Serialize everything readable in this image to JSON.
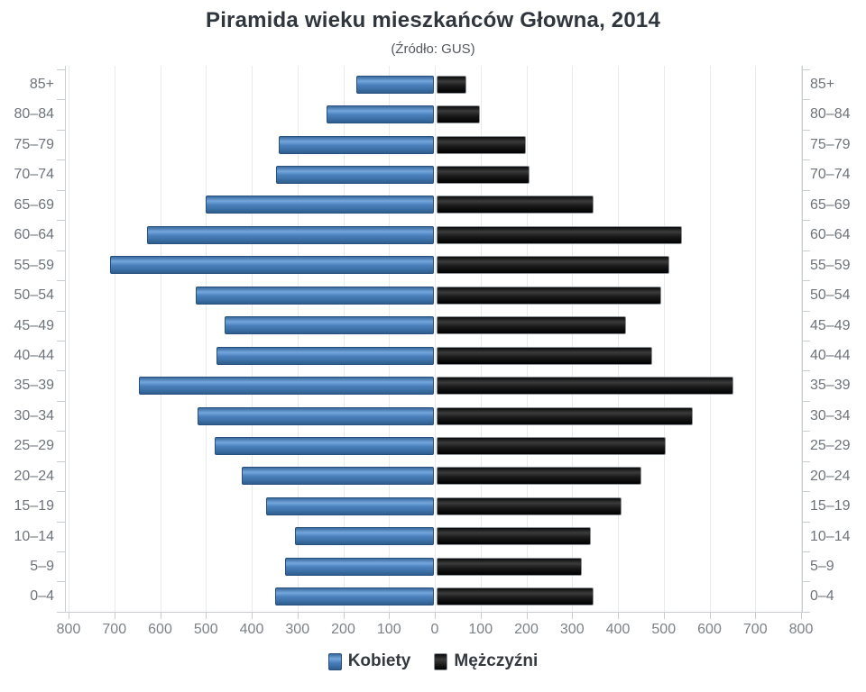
{
  "chart_data": {
    "type": "bar",
    "variant": "population-pyramid",
    "title": "Piramida wieku mieszkańców Głowna, 2014",
    "subtitle": "(Źródło: GUS)",
    "categories": [
      "85+",
      "80–84",
      "75–79",
      "70–74",
      "65–69",
      "60–64",
      "55–59",
      "50–54",
      "45–49",
      "40–44",
      "35–39",
      "30–34",
      "25–29",
      "20–24",
      "15–19",
      "10–14",
      "5–9",
      "0–4"
    ],
    "categories_order": "top-to-bottom",
    "series": [
      {
        "name": "Kobiety",
        "side": "left",
        "color": "#4a80bd",
        "values": [
          170,
          235,
          338,
          345,
          499,
          627,
          707,
          521,
          457,
          475,
          645,
          516,
          478,
          419,
          366,
          304,
          325,
          347
        ]
      },
      {
        "name": "Mężczyźni",
        "side": "right",
        "color": "#141414",
        "values": [
          66,
          95,
          196,
          202,
          342,
          535,
          509,
          491,
          414,
          471,
          649,
          560,
          501,
          447,
          404,
          337,
          318,
          343
        ]
      }
    ],
    "x_axis": {
      "max_each_side": 800,
      "tick_step": 100,
      "tick_labels": [
        "800",
        "700",
        "600",
        "500",
        "400",
        "300",
        "200",
        "100",
        "0",
        "100",
        "200",
        "300",
        "400",
        "500",
        "600",
        "700",
        "800"
      ],
      "grid": true
    },
    "y_axis": {
      "labels_on_both_sides": true
    },
    "legend_position": "bottom-center"
  },
  "colors": {
    "female_bar": "#4a80bd",
    "male_bar": "#141414",
    "grid": "#e8eaec",
    "axis": "#c9cdd1",
    "title_text": "#30363e",
    "axis_text": "#7c8187"
  }
}
